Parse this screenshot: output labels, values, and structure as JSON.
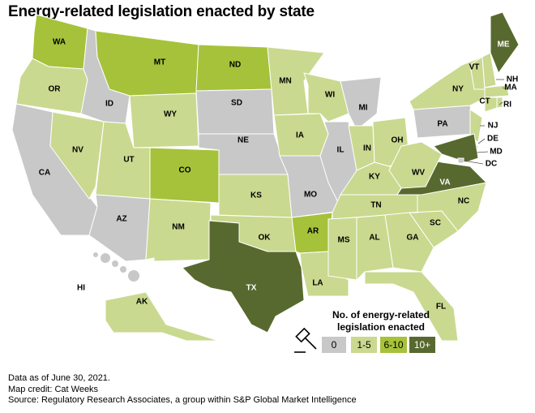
{
  "title": "Energy-related legislation enacted by state",
  "colors": {
    "0": "#c8c8c8",
    "1-5": "#c9d98f",
    "6-10": "#a6c23a",
    "10+": "#58692f"
  },
  "legend": {
    "title_line1": "No. of energy-related",
    "title_line2": "legislation enacted",
    "icon": "gavel-icon",
    "items": [
      {
        "label": "0",
        "category": "0"
      },
      {
        "label": "1-5",
        "category": "1-5"
      },
      {
        "label": "6-10",
        "category": "6-10"
      },
      {
        "label": "10+",
        "category": "10+"
      }
    ]
  },
  "states": [
    {
      "code": "WA",
      "category": "6-10"
    },
    {
      "code": "OR",
      "category": "1-5"
    },
    {
      "code": "CA",
      "category": "0"
    },
    {
      "code": "NV",
      "category": "1-5"
    },
    {
      "code": "ID",
      "category": "0"
    },
    {
      "code": "MT",
      "category": "6-10"
    },
    {
      "code": "WY",
      "category": "1-5"
    },
    {
      "code": "UT",
      "category": "1-5"
    },
    {
      "code": "AZ",
      "category": "0"
    },
    {
      "code": "CO",
      "category": "6-10"
    },
    {
      "code": "NM",
      "category": "1-5"
    },
    {
      "code": "ND",
      "category": "6-10"
    },
    {
      "code": "SD",
      "category": "0"
    },
    {
      "code": "NE",
      "category": "0"
    },
    {
      "code": "KS",
      "category": "1-5"
    },
    {
      "code": "OK",
      "category": "1-5"
    },
    {
      "code": "TX",
      "category": "10+"
    },
    {
      "code": "MN",
      "category": "1-5"
    },
    {
      "code": "IA",
      "category": "1-5"
    },
    {
      "code": "MO",
      "category": "0"
    },
    {
      "code": "AR",
      "category": "6-10"
    },
    {
      "code": "LA",
      "category": "1-5"
    },
    {
      "code": "WI",
      "category": "1-5"
    },
    {
      "code": "IL",
      "category": "0"
    },
    {
      "code": "MI",
      "category": "0"
    },
    {
      "code": "IN",
      "category": "1-5"
    },
    {
      "code": "OH",
      "category": "1-5"
    },
    {
      "code": "KY",
      "category": "1-5"
    },
    {
      "code": "TN",
      "category": "1-5"
    },
    {
      "code": "MS",
      "category": "1-5"
    },
    {
      "code": "AL",
      "category": "1-5"
    },
    {
      "code": "GA",
      "category": "1-5"
    },
    {
      "code": "FL",
      "category": "1-5"
    },
    {
      "code": "SC",
      "category": "1-5"
    },
    {
      "code": "NC",
      "category": "1-5"
    },
    {
      "code": "VA",
      "category": "10+"
    },
    {
      "code": "WV",
      "category": "1-5"
    },
    {
      "code": "PA",
      "category": "0"
    },
    {
      "code": "NY",
      "category": "1-5"
    },
    {
      "code": "NJ",
      "category": "1-5"
    },
    {
      "code": "DE",
      "category": "1-5"
    },
    {
      "code": "MD",
      "category": "10+"
    },
    {
      "code": "DC",
      "category": "0"
    },
    {
      "code": "VT",
      "category": "1-5"
    },
    {
      "code": "NH",
      "category": "1-5"
    },
    {
      "code": "ME",
      "category": "10+"
    },
    {
      "code": "MA",
      "category": "1-5"
    },
    {
      "code": "CT",
      "category": "1-5"
    },
    {
      "code": "RI",
      "category": "1-5"
    },
    {
      "code": "AK",
      "category": "1-5"
    },
    {
      "code": "HI",
      "category": "0"
    }
  ],
  "notes": {
    "line1": "Data as of June 30, 2021.",
    "line2": "Map credit: Cat Weeks",
    "line3": "Source: Regulatory Research Associates, a group within S&P Global Market Intelligence"
  }
}
